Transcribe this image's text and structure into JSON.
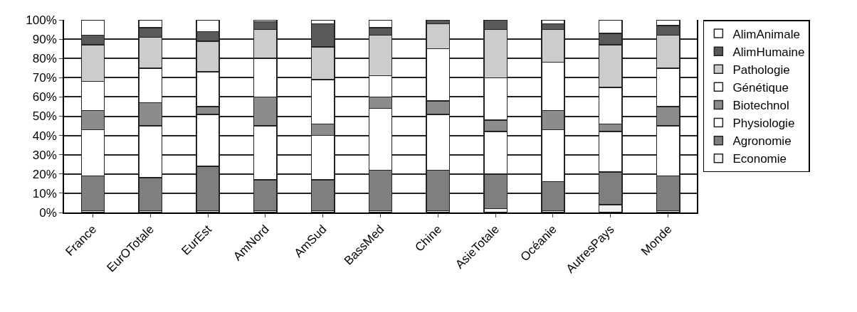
{
  "chart_data": {
    "type": "bar",
    "stacked": true,
    "categories": [
      "France",
      "EurOTotale",
      "EurEst",
      "AmNord",
      "AmSud",
      "BassMed",
      "Chine",
      "AsieTotale",
      "Océanie",
      "AutresPays",
      "Monde"
    ],
    "series": [
      {
        "name": "Economie",
        "color": "#f2f2f2",
        "values": [
          1,
          1,
          1,
          1,
          1,
          1,
          1,
          2,
          1,
          4,
          1
        ]
      },
      {
        "name": "Agronomie",
        "color": "#7f7f7f",
        "values": [
          18,
          17,
          23,
          16,
          16,
          21,
          21,
          18,
          15,
          17,
          18
        ]
      },
      {
        "name": "Physiologie",
        "color": "#ffffff",
        "values": [
          24,
          27,
          27,
          28,
          23,
          32,
          29,
          22,
          27,
          21,
          26
        ]
      },
      {
        "name": "Biotechnol",
        "color": "#8c8c8c",
        "values": [
          10,
          12,
          4,
          15,
          6,
          6,
          7,
          6,
          10,
          4,
          10
        ]
      },
      {
        "name": "Génétique",
        "color": "#ffffff",
        "values": [
          15,
          18,
          18,
          20,
          23,
          11,
          27,
          22,
          25,
          19,
          20
        ]
      },
      {
        "name": "Pathologie",
        "color": "#cccccc",
        "values": [
          19,
          16,
          16,
          15,
          17,
          21,
          13,
          25,
          17,
          22,
          17
        ]
      },
      {
        "name": "AlimHumaine",
        "color": "#595959",
        "values": [
          5,
          5,
          5,
          4,
          12,
          4,
          2,
          5,
          3,
          6,
          5
        ]
      },
      {
        "name": "AlimAnimale",
        "color": "#ffffff",
        "values": [
          8,
          4,
          6,
          1,
          2,
          4,
          0,
          0,
          2,
          7,
          3
        ]
      }
    ],
    "ylim": [
      0,
      100
    ],
    "yticks": [
      {
        "value": 0,
        "label": "0%"
      },
      {
        "value": 10,
        "label": "10%"
      },
      {
        "value": 20,
        "label": "20%"
      },
      {
        "value": 30,
        "label": "30%"
      },
      {
        "value": 40,
        "label": "40%"
      },
      {
        "value": 50,
        "label": "50%"
      },
      {
        "value": 60,
        "label": "60%"
      },
      {
        "value": 70,
        "label": "70%"
      },
      {
        "value": 80,
        "label": "80%"
      },
      {
        "value": 90,
        "label": "90%"
      },
      {
        "value": 100,
        "label": "100%"
      }
    ],
    "grid": "y",
    "legend": "right"
  }
}
